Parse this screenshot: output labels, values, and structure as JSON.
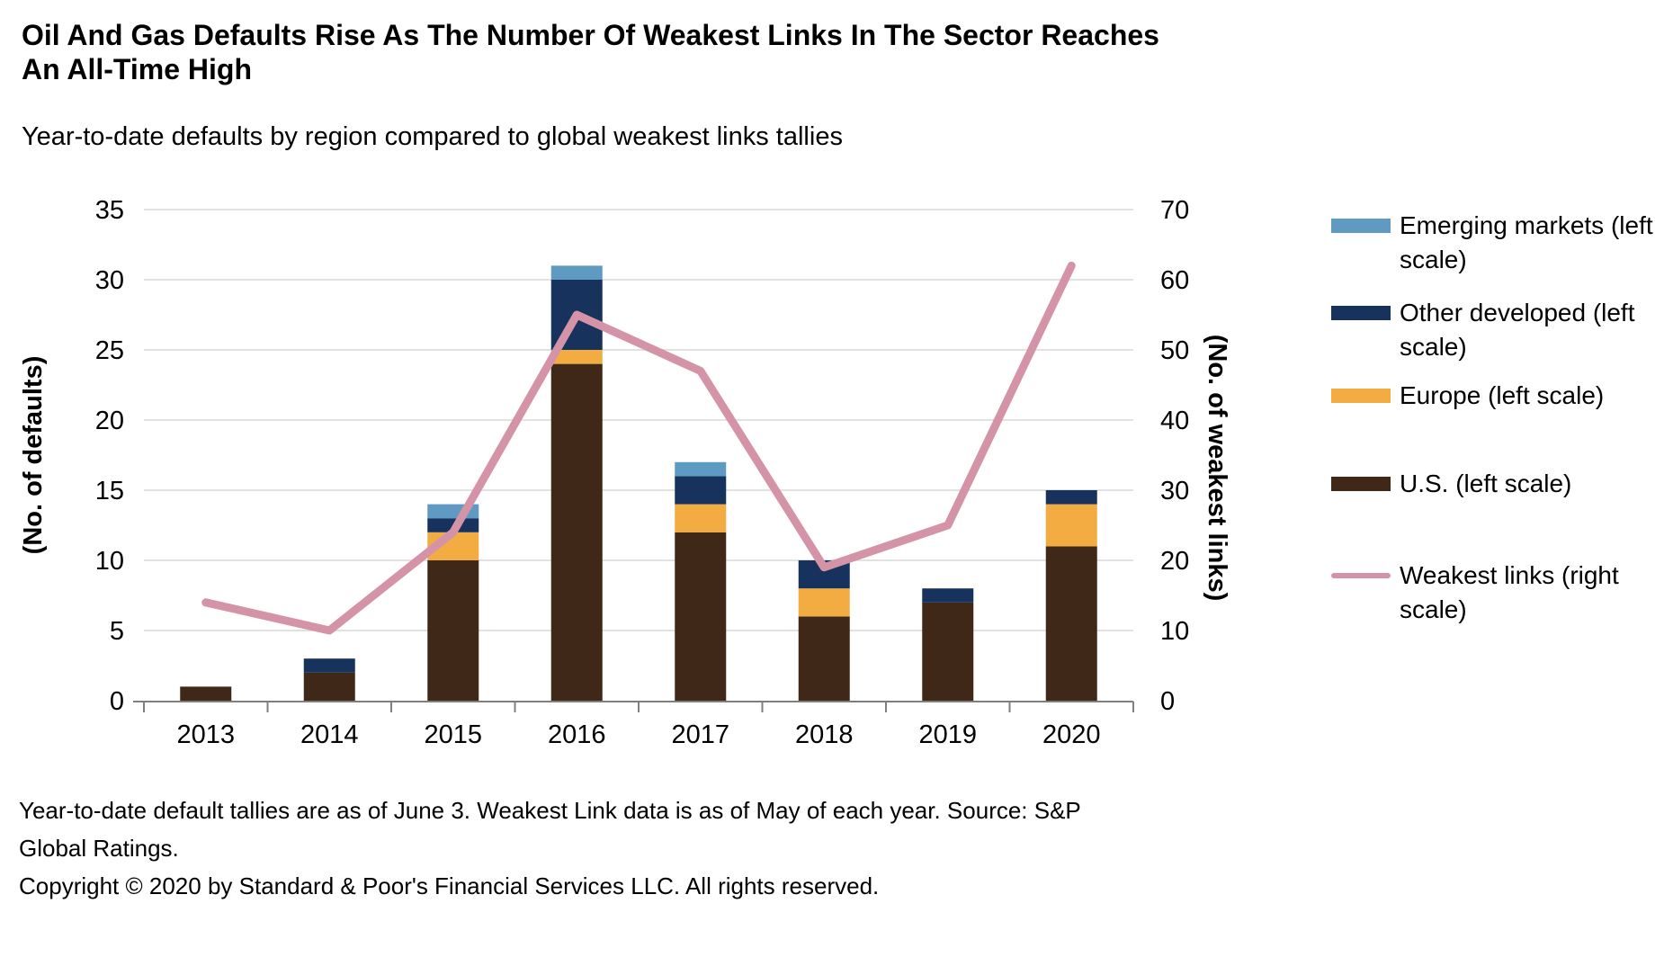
{
  "header": {
    "title_line1": "Oil And Gas Defaults Rise As The Number Of Weakest Links In The Sector Reaches",
    "title_line2": "An All-Time High",
    "subtitle": "Year-to-date defaults by region compared to global weakest links tallies"
  },
  "chart_data": {
    "type": "bar",
    "subtype": "stacked-bars-with-line-overlay",
    "categories": [
      "2013",
      "2014",
      "2015",
      "2016",
      "2017",
      "2018",
      "2019",
      "2020"
    ],
    "bar_series": [
      {
        "name": "U.S. (left scale)",
        "color": "#402818",
        "values": [
          1,
          2,
          10,
          24,
          12,
          6,
          7,
          11
        ]
      },
      {
        "name": "Europe (left scale)",
        "color": "#F2AC42",
        "values": [
          0,
          0,
          2,
          1,
          2,
          2,
          0,
          3
        ]
      },
      {
        "name": "Other developed (left scale)",
        "color": "#17335D",
        "values": [
          0,
          1,
          1,
          5,
          2,
          2,
          1,
          1
        ]
      },
      {
        "name": "Emerging markets (left scale)",
        "color": "#5E9AC2",
        "values": [
          0,
          0,
          1,
          1,
          1,
          0,
          0,
          0
        ]
      }
    ],
    "line_series": {
      "name": "Weakest links (right scale)",
      "color": "#D593A8",
      "values": [
        14,
        10,
        24,
        55,
        47,
        19,
        25,
        62
      ]
    },
    "bar_totals": [
      1,
      3,
      14,
      31,
      17,
      10,
      8,
      15
    ],
    "left_axis": {
      "label": "(No. of defaults)",
      "ticks": [
        0,
        5,
        10,
        15,
        20,
        25,
        30,
        35
      ],
      "range": [
        0,
        35
      ]
    },
    "right_axis": {
      "label": "(No. of weakest links)",
      "ticks": [
        0,
        10,
        20,
        30,
        40,
        50,
        60,
        70
      ],
      "range": [
        0,
        70
      ]
    },
    "grid": true,
    "legend_position": "right"
  },
  "legend": {
    "items": [
      {
        "label": "Emerging markets (left scale)",
        "color": "#5E9AC2",
        "swatch": "bar"
      },
      {
        "label": "Other developed (left scale)",
        "color": "#17335D",
        "swatch": "bar"
      },
      {
        "label": "Europe (left scale)",
        "color": "#F2AC42",
        "swatch": "bar"
      },
      {
        "label": "U.S. (left scale)",
        "color": "#402818",
        "swatch": "bar"
      },
      {
        "label": "Weakest links (right scale)",
        "color": "#D593A8",
        "swatch": "line"
      }
    ]
  },
  "footnotes": {
    "line1": "Year-to-date default tallies are as of June 3. Weakest Link data is as of May of each year. Source: S&P",
    "line2": "Global Ratings.",
    "line3": "Copyright © 2020 by Standard & Poor's Financial Services LLC. All rights reserved."
  },
  "colors": {
    "background": "#FFFFFF",
    "gridline": "#D9D9D9",
    "axis": "#7F7F7F",
    "text": "#000000"
  }
}
